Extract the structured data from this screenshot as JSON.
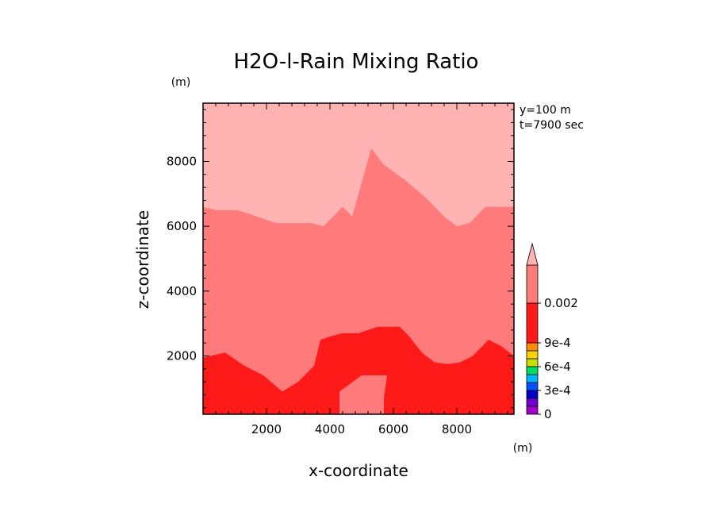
{
  "chart_data": {
    "type": "contour",
    "title": "H2O-l-Rain Mixing Ratio",
    "xlabel": "x-coordinate",
    "ylabel": "z-coordinate",
    "x_unit": "(m)",
    "y_unit": "(m)",
    "annotations": [
      "y=100 m",
      "t=7900 sec"
    ],
    "xlim": [
      0,
      9800
    ],
    "ylim": [
      200,
      9800
    ],
    "x_ticks": [
      2000,
      4000,
      6000,
      8000
    ],
    "y_ticks": [
      2000,
      4000,
      6000,
      8000
    ],
    "regions": [
      {
        "level": "0.002 and above",
        "color": "#ffb3b3",
        "boundary": [
          [
            0,
            6600
          ],
          [
            400,
            6500
          ],
          [
            1100,
            6500
          ],
          [
            2300,
            6100
          ],
          [
            3400,
            6100
          ],
          [
            3800,
            6000
          ],
          [
            4400,
            6600
          ],
          [
            4700,
            6300
          ],
          [
            5300,
            8400
          ],
          [
            5700,
            7900
          ],
          [
            6400,
            7400
          ],
          [
            7000,
            6900
          ],
          [
            7600,
            6300
          ],
          [
            8000,
            6000
          ],
          [
            8400,
            6100
          ],
          [
            8900,
            6600
          ],
          [
            9200,
            6600
          ],
          [
            9800,
            6600
          ]
        ]
      },
      {
        "level": "0.0011 – 0.002",
        "color": "#ff7b7b",
        "boundary": [
          [
            0,
            1950
          ],
          [
            700,
            2100
          ],
          [
            1300,
            1700
          ],
          [
            1900,
            1400
          ],
          [
            2500,
            900
          ],
          [
            3000,
            1200
          ],
          [
            3500,
            1700
          ],
          [
            3700,
            2500
          ],
          [
            4000,
            2600
          ],
          [
            4400,
            2700
          ],
          [
            4900,
            2700
          ],
          [
            5500,
            2900
          ],
          [
            6200,
            2900
          ],
          [
            6500,
            2600
          ],
          [
            6900,
            2100
          ],
          [
            7300,
            1800
          ],
          [
            7700,
            1750
          ],
          [
            8100,
            1800
          ],
          [
            8500,
            2000
          ],
          [
            9000,
            2500
          ],
          [
            9400,
            2300
          ],
          [
            9800,
            2000
          ]
        ]
      },
      {
        "level": "9e-4 – 0.0011",
        "color": "#ff1a1a",
        "boundary": [
          [
            0,
            200
          ],
          [
            9800,
            200
          ],
          [
            9800,
            2000
          ],
          [
            0,
            1950
          ]
        ]
      },
      {
        "level": "0.0011 – 0.002 (pocket)",
        "color": "#ff7b7b",
        "boundary": [
          [
            4300,
            200
          ],
          [
            4300,
            900
          ],
          [
            5000,
            1400
          ],
          [
            5800,
            1400
          ],
          [
            5700,
            700
          ],
          [
            5700,
            200
          ]
        ]
      }
    ],
    "colorbar": {
      "levels": [
        {
          "color": "#a000c8",
          "label": "0"
        },
        {
          "color": "#7000d0",
          "label": ""
        },
        {
          "color": "#0000c8",
          "label": "3e-4"
        },
        {
          "color": "#0050ff",
          "label": ""
        },
        {
          "color": "#00b4ff",
          "label": ""
        },
        {
          "color": "#00dc64",
          "label": "6e-4"
        },
        {
          "color": "#c8dc00",
          "label": ""
        },
        {
          "color": "#ffd200",
          "label": ""
        },
        {
          "color": "#ff8c00",
          "label": "9e-4"
        },
        {
          "color": "#ff1a1a",
          "label": ""
        },
        {
          "color": "#ff7b7b",
          "label": "0.002"
        }
      ],
      "over_color": "#ffb3b3"
    }
  }
}
